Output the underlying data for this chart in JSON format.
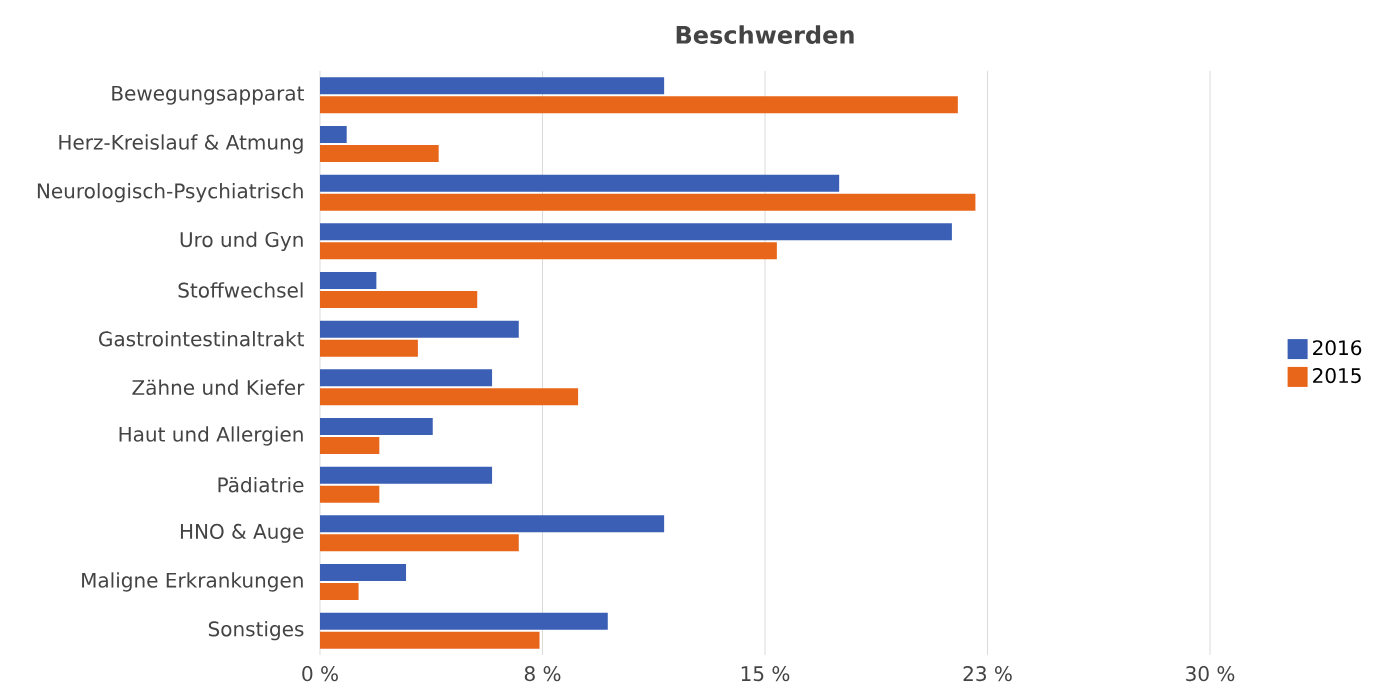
{
  "chart_data": {
    "type": "bar",
    "orientation": "horizontal",
    "title": "Beschwerden",
    "categories": [
      "Bewegungsapparat",
      "Herz-Kreislauf & Atmung",
      "Neurologisch-Psychiatrisch",
      "Uro und Gyn",
      "Stoffwechsel",
      "Gastrointestinaltrakt",
      "Zähne und Kiefer",
      "Haut und Allergien",
      "Pädiatrie",
      "HNO & Auge",
      "Maligne Erkrankungen",
      "Sonstiges"
    ],
    "series": [
      {
        "name": "2016",
        "color": "#3a5fb5",
        "values": [
          11.6,
          0.9,
          17.5,
          21.3,
          1.9,
          6.7,
          5.8,
          3.8,
          5.8,
          11.6,
          2.9,
          9.7
        ]
      },
      {
        "name": "2015",
        "color": "#e8661a",
        "values": [
          21.5,
          4.0,
          22.1,
          15.4,
          5.3,
          3.3,
          8.7,
          2.0,
          2.0,
          6.7,
          1.3,
          7.4
        ]
      }
    ],
    "xlim": [
      0,
      30
    ],
    "xticks": [
      {
        "value": 0,
        "label": "0 %"
      },
      {
        "value": 7.5,
        "label": "8 %"
      },
      {
        "value": 15,
        "label": "15 %"
      },
      {
        "value": 22.5,
        "label": "23 %"
      },
      {
        "value": 30,
        "label": "30 %"
      }
    ],
    "grid": "x",
    "legend": "right"
  }
}
